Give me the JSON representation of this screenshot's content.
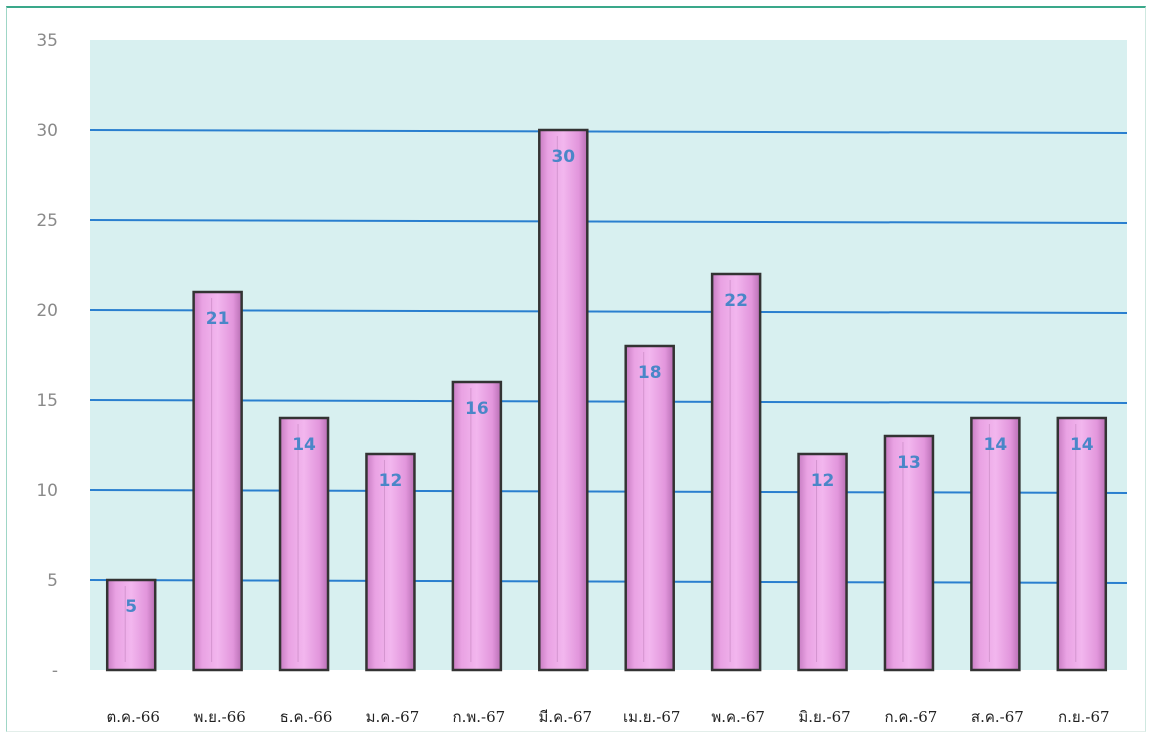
{
  "chart_data": {
    "type": "bar",
    "title": "",
    "xlabel": "",
    "ylabel": "",
    "ylim": [
      0,
      35
    ],
    "y_ticks": [
      0,
      5,
      10,
      15,
      20,
      25,
      30,
      35
    ],
    "y_tick_labels": [
      "-",
      "5",
      "10",
      "15",
      "20",
      "25",
      "30",
      "35"
    ],
    "categories": [
      "ต.ค.-66",
      "พ.ย.-66",
      "ธ.ค.-66",
      "ม.ค.-67",
      "ก.พ.-67",
      "มี.ค.-67",
      "เม.ย.-67",
      "พ.ค.-67",
      "มิ.ย.-67",
      "ก.ค.-67",
      "ส.ค.-67",
      "ก.ย.-67"
    ],
    "values": [
      5,
      21,
      14,
      12,
      16,
      30,
      18,
      22,
      12,
      13,
      14,
      14
    ],
    "data_labels": [
      "5",
      "21",
      "14",
      "12",
      "16",
      "30",
      "18",
      "22",
      "12",
      "13",
      "14",
      "14"
    ],
    "grid": true,
    "legend": "none",
    "colors": {
      "plot_background": "#d8f0f0",
      "bar_fill": "#e79be0",
      "bar_border": "#333333",
      "gridline": "#2a7fcf",
      "data_label": "#4a86c8"
    }
  }
}
